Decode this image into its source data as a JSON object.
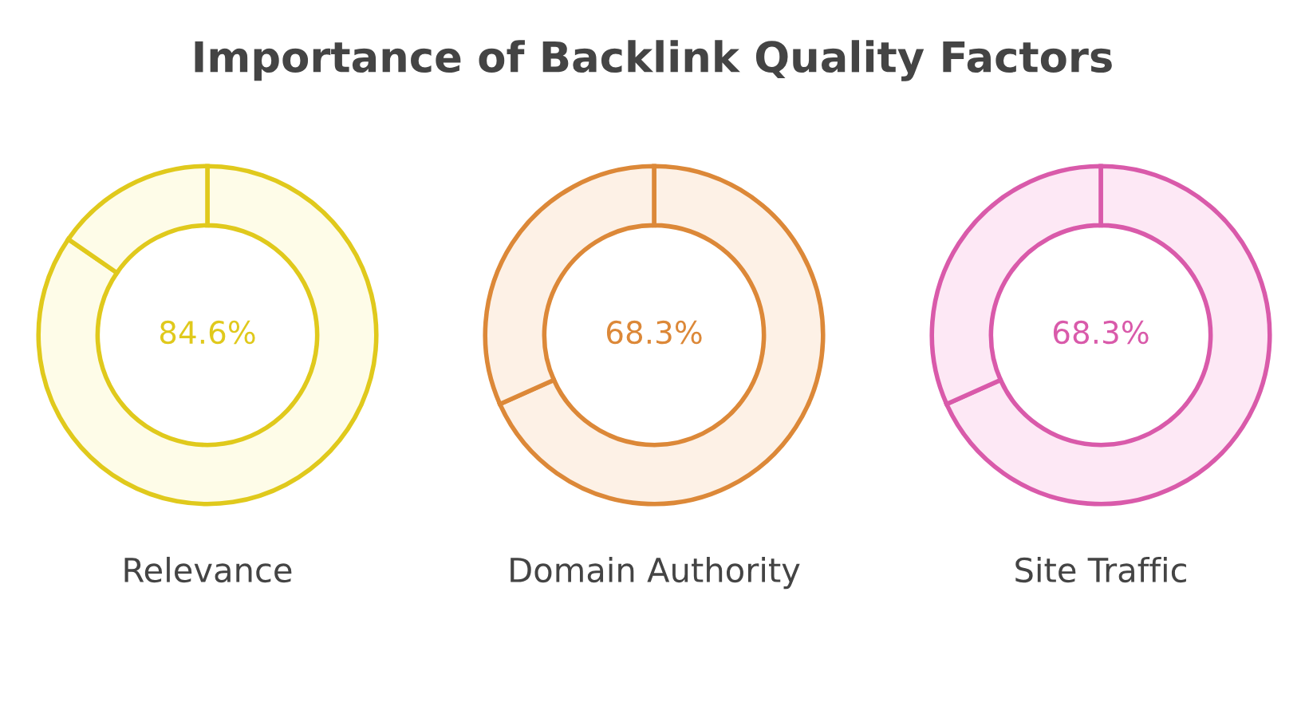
{
  "chart_data": [
    {
      "type": "donut",
      "title": "Importance of Backlink Quality Factors",
      "xlabel": "Relevance",
      "categories": [
        null,
        null
      ],
      "values": [
        84.6,
        15.4
      ],
      "colors": [
        "#fefce8",
        "#fefce8"
      ],
      "color": "#e0c91c",
      "value_labels": [
        "84.6%",
        null
      ]
    },
    {
      "type": "donut",
      "xlabel": "Domain Authority",
      "categories": [
        null,
        null
      ],
      "values": [
        68.3,
        31.7
      ],
      "colors": [
        "#fdf1e6",
        "#fdf1e6"
      ],
      "color": "#dc8838",
      "value_labels": [
        "68.3%",
        null
      ]
    },
    {
      "type": "donut",
      "xlabel": "Site Traffic",
      "categories": [
        null,
        null
      ],
      "values": [
        68.3,
        31.7
      ],
      "colors": [
        "#fde8f5",
        "#fde8f5"
      ],
      "color": "#d95aaa",
      "value_labels": [
        "68.3%",
        null
      ]
    }
  ]
}
